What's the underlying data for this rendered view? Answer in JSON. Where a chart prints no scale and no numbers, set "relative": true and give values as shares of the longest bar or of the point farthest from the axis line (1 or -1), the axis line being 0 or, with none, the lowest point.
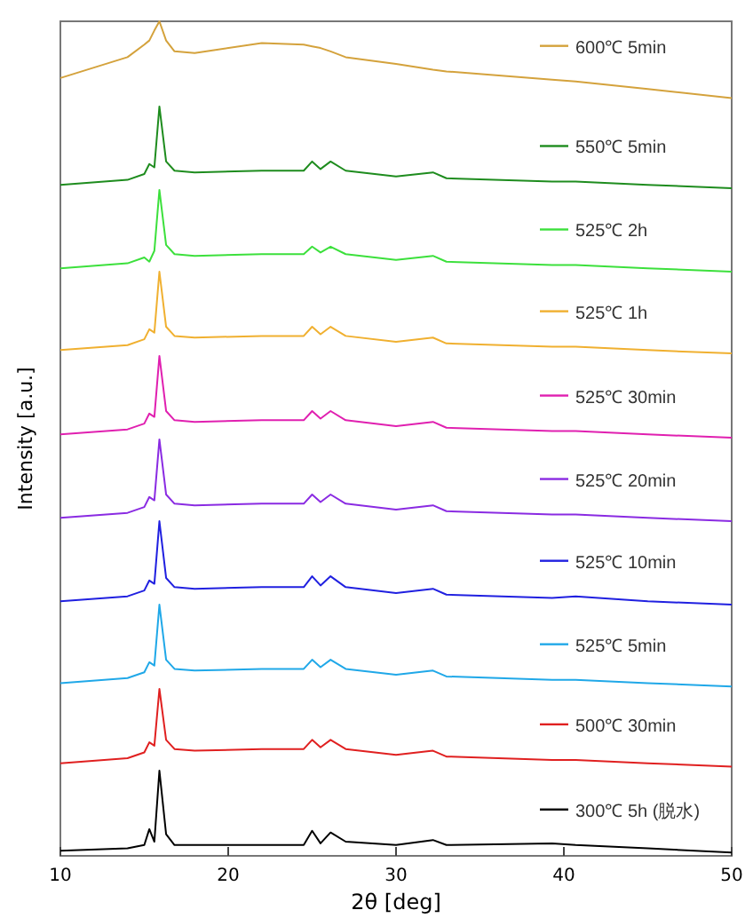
{
  "chart_data": {
    "type": "line",
    "relative": true,
    "xlabel": "2θ [deg]",
    "ylabel": "Intensity [a.u.]",
    "xlim": [
      10,
      50
    ],
    "xticks": [
      10,
      20,
      30,
      40,
      50
    ],
    "grid": false,
    "legend": "right",
    "marker": "none",
    "line_style": "solid",
    "x": [
      10,
      14,
      15,
      15.3,
      15.6,
      15.9,
      16.3,
      16.8,
      18,
      22,
      24.5,
      25,
      25.5,
      26.1,
      27,
      30,
      32.2,
      33,
      39.3,
      40.7,
      45,
      50
    ],
    "series": [
      {
        "name": "600℃ 5min",
        "color": "#d4a23c",
        "values": [
          0.932,
          0.957,
          0.972,
          0.977,
          0.989,
          1.0,
          0.977,
          0.964,
          0.962,
          0.974,
          0.972,
          0.97,
          0.968,
          0.964,
          0.957,
          0.949,
          0.942,
          0.94,
          0.93,
          0.928,
          0.919,
          0.908
        ]
      },
      {
        "name": "550℃ 5min",
        "color": "#1e8c1e",
        "values": [
          0.804,
          0.81,
          0.817,
          0.829,
          0.825,
          0.898,
          0.832,
          0.821,
          0.819,
          0.821,
          0.821,
          0.832,
          0.823,
          0.832,
          0.821,
          0.814,
          0.819,
          0.812,
          0.808,
          0.808,
          0.804,
          0.8
        ]
      },
      {
        "name": "525℃ 2h",
        "color": "#3ce03c",
        "values": [
          0.704,
          0.71,
          0.717,
          0.712,
          0.725,
          0.798,
          0.732,
          0.721,
          0.719,
          0.721,
          0.721,
          0.73,
          0.723,
          0.73,
          0.721,
          0.714,
          0.719,
          0.712,
          0.708,
          0.708,
          0.704,
          0.7
        ]
      },
      {
        "name": "525℃ 1h",
        "color": "#f0b030",
        "values": [
          0.606,
          0.612,
          0.619,
          0.631,
          0.627,
          0.7,
          0.634,
          0.623,
          0.621,
          0.623,
          0.623,
          0.634,
          0.625,
          0.634,
          0.623,
          0.616,
          0.621,
          0.614,
          0.61,
          0.61,
          0.606,
          0.602
        ]
      },
      {
        "name": "525℃ 30min",
        "color": "#e020b0",
        "values": [
          0.505,
          0.511,
          0.518,
          0.53,
          0.526,
          0.599,
          0.533,
          0.522,
          0.52,
          0.522,
          0.522,
          0.533,
          0.524,
          0.533,
          0.522,
          0.515,
          0.52,
          0.513,
          0.509,
          0.509,
          0.505,
          0.501
        ]
      },
      {
        "name": "525℃ 20min",
        "color": "#8a2be2",
        "values": [
          0.405,
          0.411,
          0.418,
          0.43,
          0.426,
          0.499,
          0.433,
          0.422,
          0.42,
          0.422,
          0.422,
          0.433,
          0.424,
          0.433,
          0.422,
          0.415,
          0.42,
          0.413,
          0.409,
          0.409,
          0.405,
          0.401
        ]
      },
      {
        "name": "525℃ 10min",
        "color": "#2020e0",
        "values": [
          0.305,
          0.311,
          0.318,
          0.33,
          0.326,
          0.401,
          0.333,
          0.322,
          0.32,
          0.322,
          0.322,
          0.335,
          0.324,
          0.335,
          0.322,
          0.315,
          0.32,
          0.313,
          0.309,
          0.311,
          0.305,
          0.301
        ]
      },
      {
        "name": "525℃ 5min",
        "color": "#20a8e8",
        "values": [
          0.207,
          0.213,
          0.22,
          0.232,
          0.228,
          0.301,
          0.235,
          0.224,
          0.222,
          0.224,
          0.224,
          0.235,
          0.226,
          0.235,
          0.224,
          0.217,
          0.222,
          0.215,
          0.211,
          0.211,
          0.207,
          0.203
        ]
      },
      {
        "name": "500℃ 30min",
        "color": "#e02020",
        "values": [
          0.111,
          0.117,
          0.124,
          0.136,
          0.132,
          0.2,
          0.139,
          0.128,
          0.126,
          0.128,
          0.128,
          0.139,
          0.13,
          0.139,
          0.128,
          0.121,
          0.126,
          0.119,
          0.115,
          0.115,
          0.111,
          0.107
        ]
      },
      {
        "name": "300℃ 5h (脱水)",
        "color": "#000000",
        "values": [
          0.006,
          0.009,
          0.013,
          0.032,
          0.017,
          0.102,
          0.026,
          0.013,
          0.013,
          0.013,
          0.013,
          0.03,
          0.015,
          0.028,
          0.017,
          0.013,
          0.019,
          0.013,
          0.015,
          0.013,
          0.009,
          0.004
        ]
      }
    ]
  }
}
